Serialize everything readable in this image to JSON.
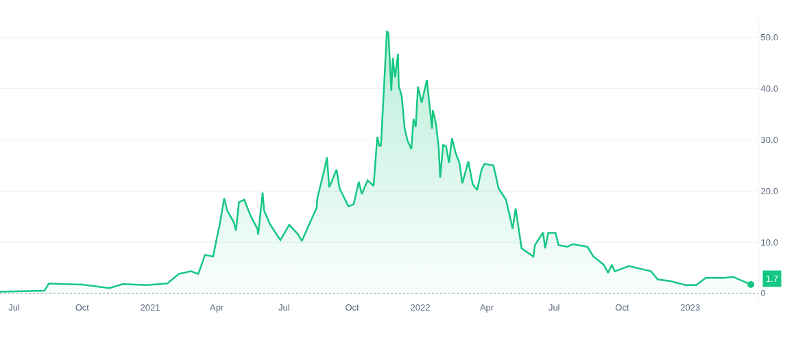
{
  "chart_data": {
    "type": "area",
    "x": [
      "2020-06-12",
      "2020-08-11",
      "2020-08-17",
      "2020-09-03",
      "2020-10-01",
      "2020-11-07",
      "2020-11-25",
      "2020-12-27",
      "2021-01-24",
      "2021-02-09",
      "2021-02-25",
      "2021-03-07",
      "2021-03-13",
      "2021-03-16",
      "2021-03-27",
      "2021-04-01",
      "2021-04-05",
      "2021-04-11",
      "2021-04-15",
      "2021-04-24",
      "2021-04-27",
      "2021-05-01",
      "2021-05-08",
      "2021-05-17",
      "2021-05-26",
      "2021-05-27",
      "2021-06-02",
      "2021-06-04",
      "2021-06-12",
      "2021-06-26",
      "2021-07-08",
      "2021-07-20",
      "2021-07-25",
      "2021-08-04",
      "2021-08-14",
      "2021-08-15",
      "2021-08-25",
      "2021-08-28",
      "2021-08-31",
      "2021-09-10",
      "2021-09-14",
      "2021-09-26",
      "2021-10-03",
      "2021-10-10",
      "2021-10-14",
      "2021-10-22",
      "2021-10-30",
      "2021-11-04",
      "2021-11-07",
      "2021-11-09",
      "2021-11-17",
      "2021-11-19",
      "2021-11-23",
      "2021-11-25",
      "2021-11-28",
      "2021-12-02",
      "2021-12-03",
      "2021-12-07",
      "2021-12-11",
      "2021-12-15",
      "2021-12-20",
      "2021-12-23",
      "2021-12-26",
      "2021-12-29",
      "2022-01-03",
      "2022-01-10",
      "2022-01-17",
      "2022-01-18",
      "2022-01-22",
      "2022-01-26",
      "2022-01-28",
      "2022-02-01",
      "2022-02-05",
      "2022-02-09",
      "2022-02-13",
      "2022-02-18",
      "2022-02-23",
      "2022-02-27",
      "2022-03-07",
      "2022-03-13",
      "2022-03-19",
      "2022-03-25",
      "2022-03-29",
      "2022-04-10",
      "2022-04-17",
      "2022-04-27",
      "2022-05-06",
      "2022-05-10",
      "2022-05-18",
      "2022-06-03",
      "2022-06-05",
      "2022-06-16",
      "2022-06-19",
      "2022-06-23",
      "2022-07-03",
      "2022-07-07",
      "2022-07-19",
      "2022-07-26",
      "2022-08-15",
      "2022-08-23",
      "2022-09-06",
      "2022-09-12",
      "2022-09-17",
      "2022-09-21",
      "2022-10-10",
      "2022-11-09",
      "2022-11-18",
      "2022-12-04",
      "2022-12-26",
      "2023-01-09",
      "2023-01-22",
      "2023-02-16",
      "2023-02-28",
      "2023-03-13",
      "2023-03-24"
    ],
    "series": [
      {
        "color": "#16c784",
        "values": [
          0.3,
          0.5,
          1.9,
          1.8,
          1.7,
          1.0,
          1.8,
          1.6,
          1.9,
          3.8,
          4.3,
          3.8,
          6.2,
          7.5,
          7.2,
          10.7,
          13.4,
          18.6,
          16.2,
          13.9,
          12.3,
          17.8,
          18.3,
          15.1,
          12.6,
          11.5,
          19.7,
          16.2,
          13.5,
          10.4,
          13.4,
          11.5,
          10.2,
          13.5,
          16.7,
          18.6,
          24.5,
          26.6,
          20.7,
          24.2,
          20.5,
          17.0,
          17.4,
          21.8,
          19.4,
          22.1,
          21.0,
          30.6,
          28.7,
          29.0,
          51.3,
          50.8,
          39.6,
          46.0,
          42.2,
          46.8,
          40.6,
          38.5,
          32.2,
          29.8,
          28.2,
          34.1,
          32.5,
          40.4,
          37.3,
          41.7,
          32.2,
          35.8,
          33.4,
          28.5,
          22.6,
          29.0,
          28.7,
          25.5,
          30.3,
          27.4,
          25.5,
          21.5,
          25.8,
          21.3,
          20.2,
          24.2,
          25.3,
          25.0,
          20.5,
          18.3,
          12.6,
          16.6,
          8.8,
          7.2,
          9.4,
          11.9,
          8.8,
          11.8,
          11.8,
          9.4,
          9.1,
          9.6,
          9.1,
          7.2,
          5.6,
          4.0,
          5.6,
          4.3,
          5.3,
          4.3,
          2.7,
          2.4,
          1.6,
          1.6,
          3.0,
          3.0,
          3.2,
          2.4,
          1.7
        ]
      }
    ],
    "xlim": [
      "2020-06-12",
      "2023-04-03"
    ],
    "xticks": [
      {
        "value": "2020-07-01",
        "label": "Jul"
      },
      {
        "value": "2020-10-01",
        "label": "Oct"
      },
      {
        "value": "2021-01-01",
        "label": "2021"
      },
      {
        "value": "2021-04-01",
        "label": "Apr"
      },
      {
        "value": "2021-07-01",
        "label": "Jul"
      },
      {
        "value": "2021-10-01",
        "label": "Oct"
      },
      {
        "value": "2022-01-01",
        "label": "2022"
      },
      {
        "value": "2022-04-01",
        "label": "Apr"
      },
      {
        "value": "2022-07-01",
        "label": "Jul"
      },
      {
        "value": "2022-10-01",
        "label": "Oct"
      },
      {
        "value": "2023-01-01",
        "label": "2023"
      }
    ],
    "ylim": [
      -1.5,
      54
    ],
    "yticks": [
      0,
      {
        "value": 10,
        "label": "10.0"
      },
      {
        "value": 20,
        "label": "20.0"
      },
      {
        "value": 30,
        "label": "30.0"
      },
      {
        "value": 40,
        "label": "40.0"
      },
      {
        "value": 50,
        "label": "50.0"
      }
    ],
    "ref_lines": [
      {
        "axis": "y",
        "value": 0,
        "color": "#a6b0c3",
        "line_style": "dotted"
      }
    ],
    "annotations": [
      {
        "text": "1.7",
        "x": "2023-03-24",
        "y": 1.7
      }
    ],
    "grid": "y",
    "line_style": "solid"
  }
}
